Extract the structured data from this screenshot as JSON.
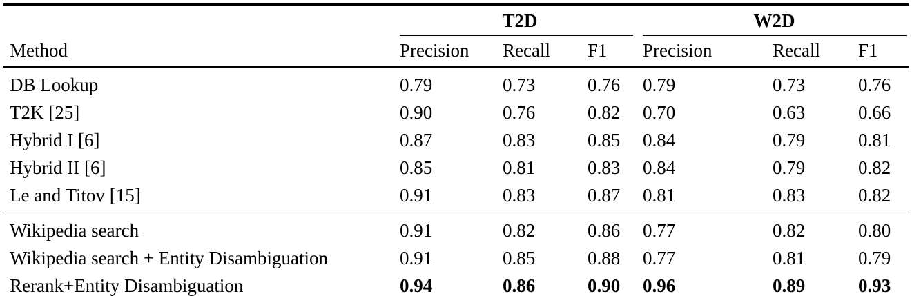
{
  "table": {
    "method_header": "Method",
    "groups": [
      {
        "label": "T2D"
      },
      {
        "label": "W2D"
      }
    ],
    "subheaders": [
      "Precision",
      "Recall",
      "F1",
      "Precision",
      "Recall",
      "F1"
    ],
    "sections": [
      {
        "rows": [
          {
            "method": "DB Lookup",
            "values": [
              "0.79",
              "0.73",
              "0.76",
              "0.79",
              "0.73",
              "0.76"
            ]
          },
          {
            "method": "T2K [25]",
            "values": [
              "0.90",
              "0.76",
              "0.82",
              "0.70",
              "0.63",
              "0.66"
            ]
          },
          {
            "method": "Hybrid I [6]",
            "values": [
              "0.87",
              "0.83",
              "0.85",
              "0.84",
              "0.79",
              "0.81"
            ]
          },
          {
            "method": "Hybrid II [6]",
            "values": [
              "0.85",
              "0.81",
              "0.83",
              "0.84",
              "0.79",
              "0.82"
            ]
          },
          {
            "method": "Le and Titov [15]",
            "values": [
              "0.91",
              "0.83",
              "0.87",
              "0.81",
              "0.83",
              "0.82"
            ]
          }
        ]
      },
      {
        "rows": [
          {
            "method": "Wikipedia search",
            "values": [
              "0.91",
              "0.82",
              "0.86",
              "0.77",
              "0.82",
              "0.80"
            ]
          },
          {
            "method": "Wikipedia search + Entity Disambiguation",
            "values": [
              "0.91",
              "0.85",
              "0.88",
              "0.77",
              "0.81",
              "0.79"
            ]
          },
          {
            "method": "Rerank+Entity Disambiguation",
            "values": [
              "0.94",
              "0.86",
              "0.90",
              "0.96",
              "0.89",
              "0.93"
            ],
            "bold_values": true
          }
        ]
      }
    ]
  }
}
